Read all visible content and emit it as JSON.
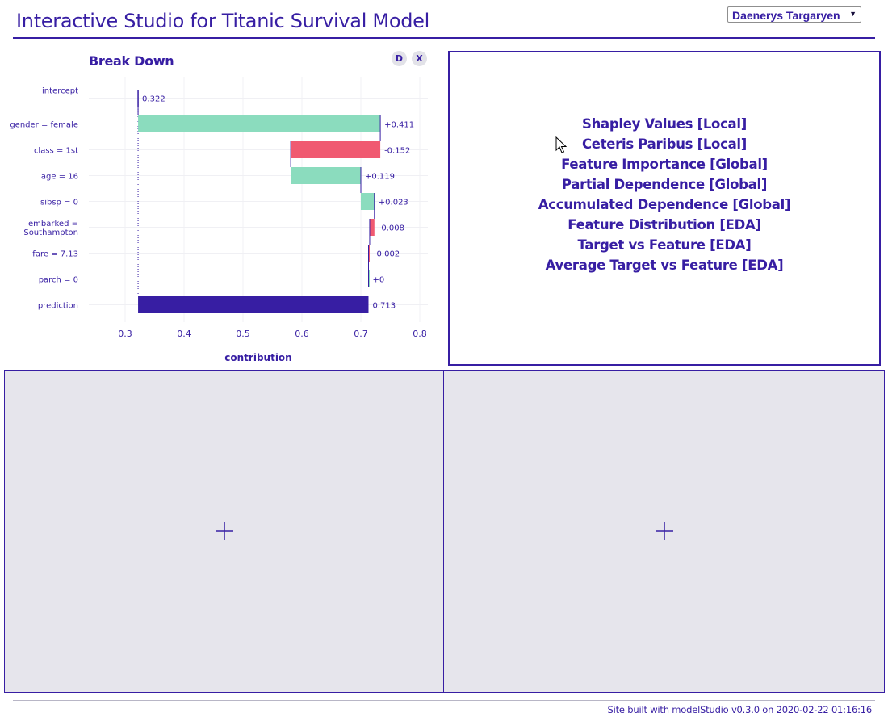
{
  "header": {
    "title": "Interactive Studio for Titanic Survival Model",
    "observation_select": "Daenerys Targaryen",
    "select_arrow": "▼"
  },
  "break_down": {
    "title": "Break Down",
    "btn_description": "D",
    "btn_close": "X"
  },
  "chart_data": {
    "type": "bar",
    "subtype": "waterfall",
    "title": "Break Down",
    "xlabel": "contribution",
    "ylabel": "",
    "xlim": [
      0.25,
      0.82
    ],
    "x_ticks": [
      "0.3",
      "0.4",
      "0.5",
      "0.6",
      "0.7",
      "0.8"
    ],
    "x_tick_values": [
      0.3,
      0.4,
      0.5,
      0.6,
      0.7,
      0.8
    ],
    "grid": true,
    "categories": [
      "intercept",
      "gender = female",
      "class = 1st",
      "age = 16",
      "sibsp = 0",
      "embarked =\nSouthampton",
      "fare = 7.13",
      "parch = 0",
      "prediction"
    ],
    "start": [
      0.322,
      0.322,
      0.733,
      0.581,
      0.7,
      0.723,
      0.715,
      0.713,
      0.322
    ],
    "end": [
      0.322,
      0.733,
      0.581,
      0.7,
      0.723,
      0.715,
      0.713,
      0.713,
      0.713
    ],
    "value_labels": [
      "0.322",
      "+0.411",
      "-0.152",
      "+0.119",
      "+0.023",
      "-0.008",
      "-0.002",
      "+0",
      "0.713"
    ],
    "colors": {
      "positive": "#8bdcbe",
      "negative": "#f05a71",
      "prediction": "#371ea3",
      "text": "#371ea3",
      "grid": "#f0f0f4",
      "tick_text": "#371ea3"
    }
  },
  "menu": {
    "items": [
      "Shapley Values [Local]",
      "Ceteris Paribus [Local]",
      "Feature Importance [Global]",
      "Partial Dependence [Global]",
      "Accumulated Dependence [Global]",
      "Feature Distribution [EDA]",
      "Target vs Feature [EDA]",
      "Average Target vs Feature [EDA]"
    ]
  },
  "panels": {
    "empty_icon": "plus-icon"
  },
  "footer": {
    "text": "Site built with modelStudio v0.3.0 on 2020-02-22 01:16:16"
  },
  "colors": {
    "accent": "#371ea3",
    "panel_bg": "#e6e5ec"
  }
}
